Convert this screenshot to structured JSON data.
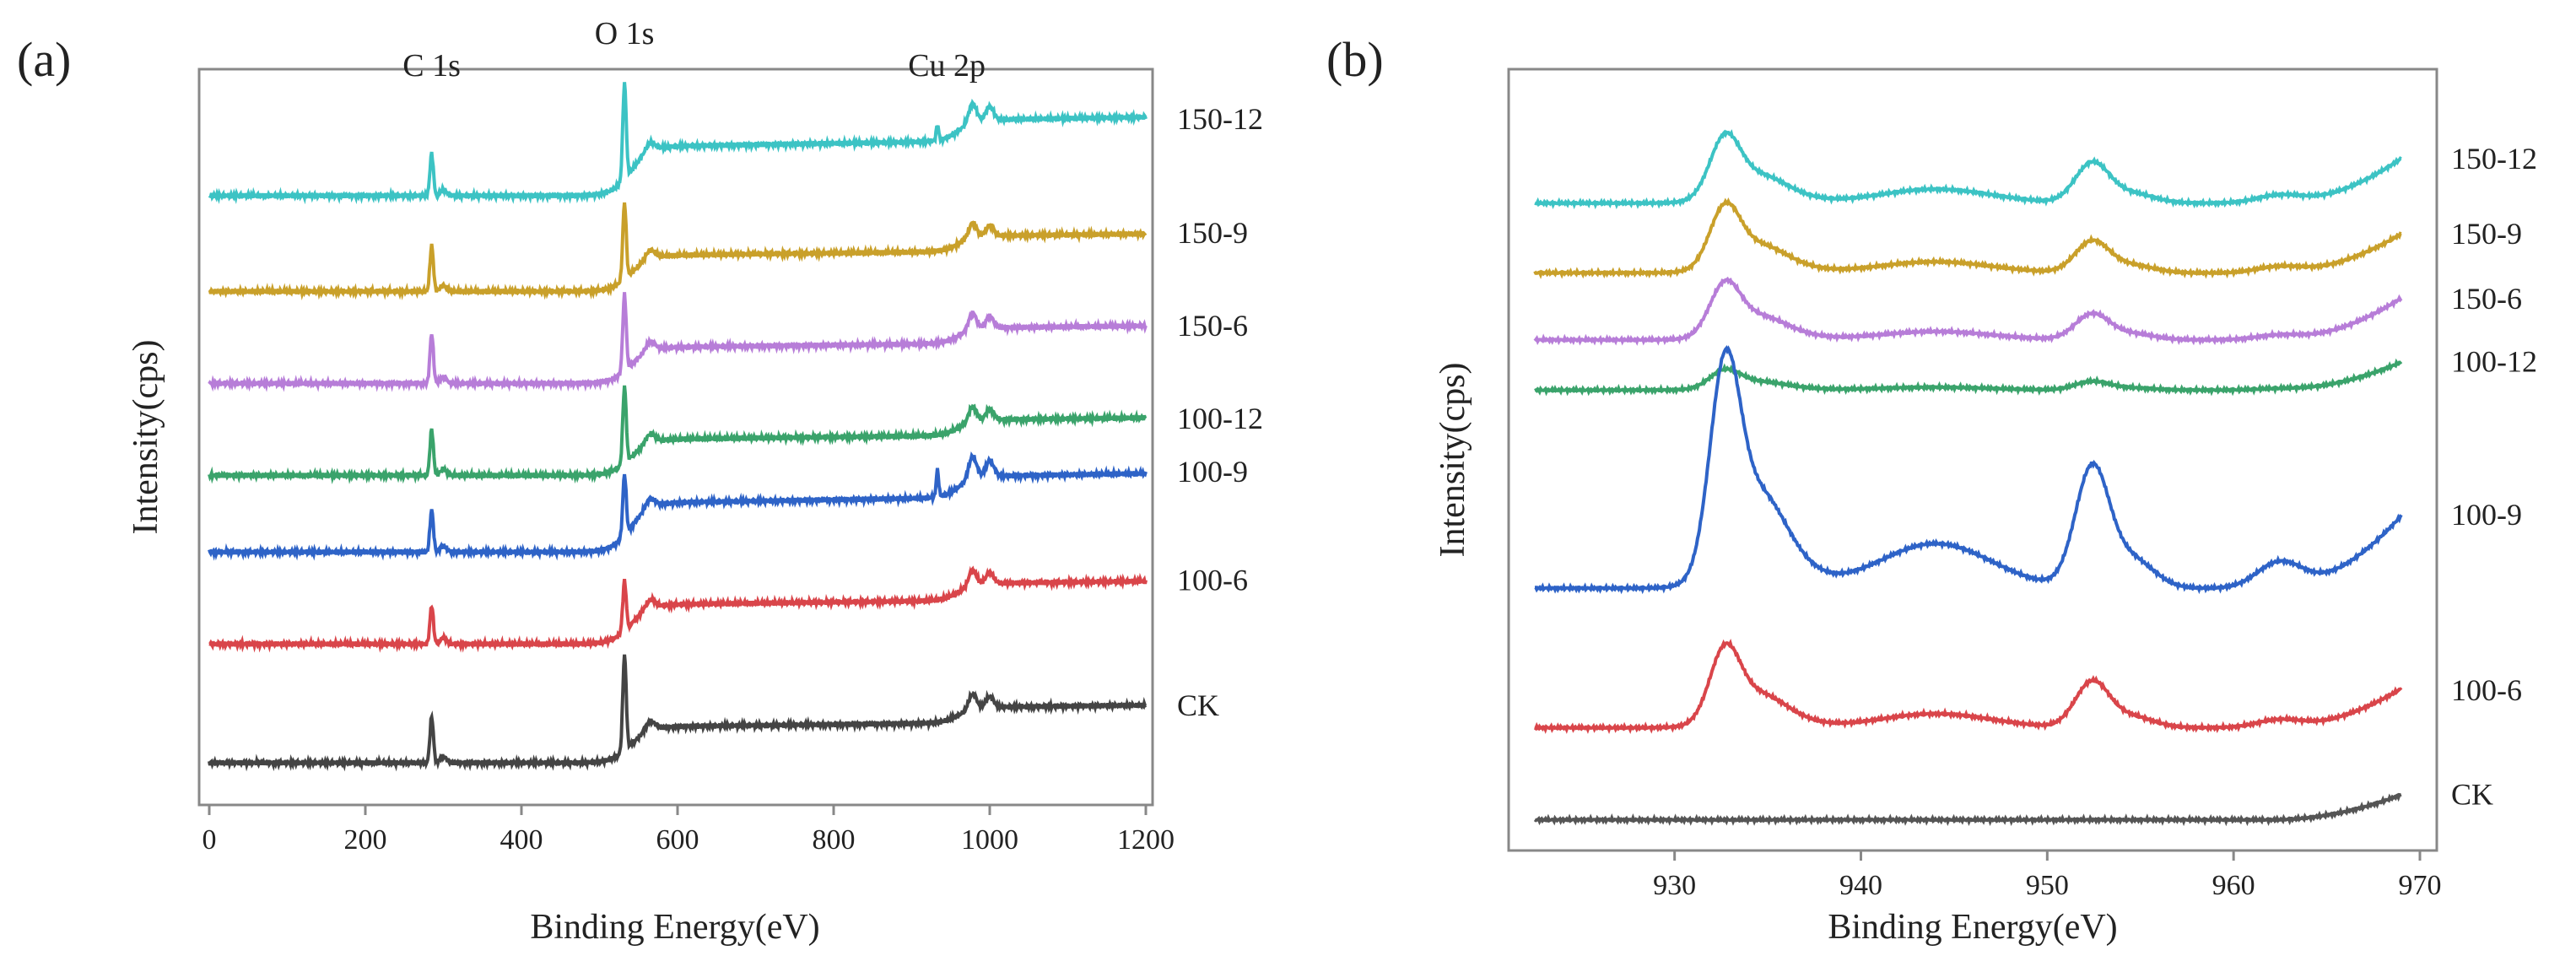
{
  "figure": {
    "panel_a_label": "(a)",
    "panel_b_label": "(b)"
  },
  "chart_data": [
    {
      "type": "line",
      "panel": "(a)",
      "xlabel": "Binding Energy(eV)",
      "ylabel": "Intensity(cps)",
      "xlim": [
        0,
        1200
      ],
      "xticks": [
        0,
        200,
        400,
        600,
        800,
        1000,
        1200
      ],
      "yticks_shown": false,
      "grid": false,
      "legend": "inline labels at right end of each trace",
      "annotations": [
        {
          "text": "C 1s",
          "x": 285
        },
        {
          "text": "O 1s",
          "x": 532
        },
        {
          "text": "Cu 2p",
          "x": 945
        }
      ],
      "series": [
        {
          "name": "150-12",
          "color": "#3cc3c4",
          "baseline": 6.35,
          "rise": 0.75,
          "peaks": {
            "C": 0.55,
            "O": 1.25,
            "Cu": 0.25,
            "Cu_sat": 0.2
          }
        },
        {
          "name": "150-9",
          "color": "#c9a02a",
          "baseline": 5.1,
          "rise": 0.55,
          "peaks": {
            "C": 0.6,
            "O": 1.0,
            "Cu": 0.2,
            "Cu_sat": 0.0
          }
        },
        {
          "name": "150-6",
          "color": "#b77dd8",
          "baseline": 3.9,
          "rise": 0.55,
          "peaks": {
            "C": 0.65,
            "O": 1.0,
            "Cu": 0.22,
            "Cu_sat": 0.0
          }
        },
        {
          "name": "100-12",
          "color": "#3aa36b",
          "baseline": 2.7,
          "rise": 0.55,
          "peaks": {
            "C": 0.6,
            "O": 1.0,
            "Cu": 0.2,
            "Cu_sat": 0.0
          }
        },
        {
          "name": "100-9",
          "color": "#2e63c7",
          "baseline": 1.7,
          "rise": 0.75,
          "peaks": {
            "C": 0.55,
            "O": 0.8,
            "Cu": 0.3,
            "Cu_sat": 0.35
          }
        },
        {
          "name": "100-6",
          "color": "#d9454a",
          "baseline": 0.5,
          "rise": 0.6,
          "peaks": {
            "C": 0.5,
            "O": 0.65,
            "Cu": 0.2,
            "Cu_sat": 0.0
          }
        },
        {
          "name": "CK",
          "color": "#444444",
          "baseline": -1.05,
          "rise": 0.55,
          "peaks": {
            "C": 0.6,
            "O": 1.25,
            "Cu": 0.2,
            "Cu_sat": 0.0
          }
        }
      ]
    },
    {
      "type": "line",
      "panel": "(b)",
      "xlabel": "Binding Energy(eV)",
      "ylabel": "Intensity(cps)",
      "xlim": [
        922,
        970
      ],
      "xticks": [
        930,
        940,
        950,
        960,
        970
      ],
      "yticks_shown": false,
      "grid": false,
      "legend": "inline labels at right end of each trace",
      "series": [
        {
          "name": "150-12",
          "color": "#3cc3c4",
          "baseline": 11.6,
          "p1": 1.0,
          "p2": 0.7,
          "sat": 0.25,
          "end": 0.8
        },
        {
          "name": "150-9",
          "color": "#c9a02a",
          "baseline": 10.35,
          "p1": 1.0,
          "p2": 0.55,
          "sat": 0.2,
          "end": 0.7
        },
        {
          "name": "150-6",
          "color": "#b77dd8",
          "baseline": 9.15,
          "p1": 0.85,
          "p2": 0.45,
          "sat": 0.15,
          "end": 0.75
        },
        {
          "name": "100-12",
          "color": "#3aa36b",
          "baseline": 8.25,
          "p1": 0.3,
          "p2": 0.15,
          "sat": 0.05,
          "end": 0.5
        },
        {
          "name": "100-9",
          "color": "#2e63c7",
          "baseline": 4.7,
          "p1": 3.4,
          "p2": 2.1,
          "sat": 0.8,
          "end": 1.3
        },
        {
          "name": "100-6",
          "color": "#d9454a",
          "baseline": 2.2,
          "p1": 1.2,
          "p2": 0.8,
          "sat": 0.25,
          "end": 0.7
        },
        {
          "name": "CK",
          "color": "#555555",
          "baseline": 0.55,
          "p1": 0.0,
          "p2": 0.0,
          "sat": 0.0,
          "end": 0.45
        }
      ]
    }
  ]
}
